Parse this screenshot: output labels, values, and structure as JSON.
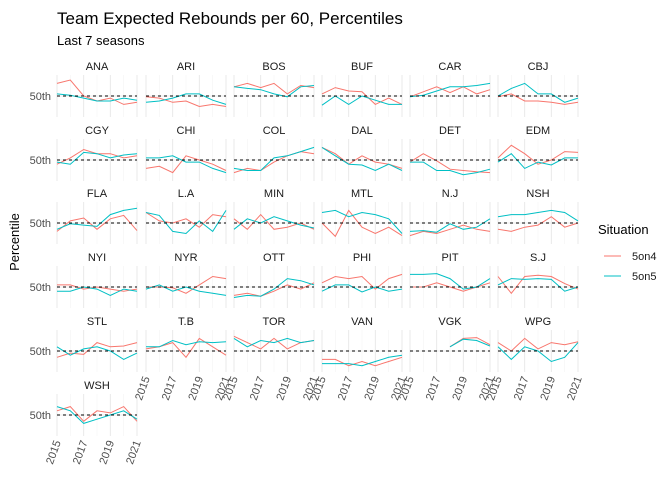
{
  "chart_data": {
    "type": "line",
    "title": "Team Expected Rebounds per 60, Percentiles",
    "subtitle": "Last 7 seasons",
    "ylabel": "Percentile",
    "xlabel": "",
    "y_tick_labels": [
      "50th"
    ],
    "ylim": [
      0,
      100
    ],
    "x": [
      2015,
      2016,
      2017,
      2018,
      2019,
      2020,
      2021
    ],
    "x_tick_labels": [
      "2015",
      "2017",
      "2019",
      "2021"
    ],
    "legend": {
      "title": "Situation",
      "position": "right",
      "entries": [
        {
          "name": "5on4",
          "color": "#F8766D"
        },
        {
          "name": "5on5",
          "color": "#00BFC4"
        }
      ]
    },
    "reference_line": {
      "value": 50,
      "style": "dashed",
      "color": "#000000"
    },
    "grid": true,
    "panels": [
      {
        "team": "ANA",
        "series": [
          {
            "name": "5on4",
            "values": [
              80,
              88,
              50,
              38,
              45,
              30,
              35
            ]
          },
          {
            "name": "5on5",
            "values": [
              55,
              52,
              45,
              38,
              38,
              45,
              40
            ]
          }
        ]
      },
      {
        "team": "ARI",
        "series": [
          {
            "name": "5on4",
            "values": [
              48,
              45,
              35,
              38,
              25,
              30,
              25
            ]
          },
          {
            "name": "5on5",
            "values": [
              35,
              38,
              45,
              55,
              55,
              40,
              30
            ]
          }
        ]
      },
      {
        "team": "BOS",
        "series": [
          {
            "name": "5on4",
            "values": [
              72,
              80,
              70,
              80,
              55,
              75,
              70
            ]
          },
          {
            "name": "5on5",
            "values": [
              72,
              68,
              65,
              55,
              48,
              72,
              75
            ]
          }
        ]
      },
      {
        "team": "BUF",
        "series": [
          {
            "name": "5on4",
            "values": [
              55,
              70,
              62,
              60,
              30,
              45,
              30
            ]
          },
          {
            "name": "5on5",
            "values": [
              28,
              50,
              30,
              50,
              40,
              30,
              30
            ]
          }
        ]
      },
      {
        "team": "CAR",
        "series": [
          {
            "name": "5on4",
            "values": [
              48,
              60,
              72,
              58,
              72,
              55,
              65
            ]
          },
          {
            "name": "5on5",
            "values": [
              48,
              52,
              62,
              72,
              72,
              75,
              80
            ]
          }
        ]
      },
      {
        "team": "CBJ",
        "series": [
          {
            "name": "5on4",
            "values": [
              48,
              55,
              38,
              38,
              35,
              30,
              35
            ]
          },
          {
            "name": "5on5",
            "values": [
              50,
              68,
              80,
              55,
              55,
              35,
              45
            ]
          }
        ]
      },
      {
        "team": "CGY",
        "series": [
          {
            "name": "5on4",
            "values": [
              40,
              55,
              75,
              65,
              65,
              55,
              60
            ]
          },
          {
            "name": "5on5",
            "values": [
              45,
              40,
              68,
              65,
              55,
              62,
              65
            ]
          }
        ]
      },
      {
        "team": "CHI",
        "series": [
          {
            "name": "5on4",
            "values": [
              30,
              35,
              20,
              60,
              50,
              40,
              25
            ]
          },
          {
            "name": "5on5",
            "values": [
              55,
              55,
              60,
              45,
              45,
              30,
              20
            ]
          }
        ]
      },
      {
        "team": "COL",
        "series": [
          {
            "name": "5on4",
            "values": [
              20,
              30,
              25,
              45,
              60,
              70,
              65
            ]
          },
          {
            "name": "5on5",
            "values": [
              30,
              25,
              25,
              55,
              60,
              70,
              80
            ]
          }
        ]
      },
      {
        "team": "DAL",
        "series": [
          {
            "name": "5on4",
            "values": [
              80,
              65,
              40,
              60,
              45,
              40,
              30
            ]
          },
          {
            "name": "5on5",
            "values": [
              80,
              60,
              40,
              38,
              25,
              40,
              25
            ]
          }
        ]
      },
      {
        "team": "DET",
        "series": [
          {
            "name": "5on4",
            "values": [
              45,
              65,
              48,
              28,
              25,
              22,
              20
            ]
          },
          {
            "name": "5on5",
            "values": [
              45,
              45,
              25,
              25,
              15,
              20,
              28
            ]
          }
        ]
      },
      {
        "team": "EDM",
        "series": [
          {
            "name": "5on4",
            "values": [
              55,
              85,
              65,
              40,
              50,
              70,
              68
            ]
          },
          {
            "name": "5on5",
            "values": [
              45,
              65,
              30,
              45,
              38,
              55,
              55
            ]
          }
        ]
      },
      {
        "team": "FLA",
        "series": [
          {
            "name": "5on4",
            "values": [
              30,
              55,
              62,
              35,
              60,
              68,
              32
            ]
          },
          {
            "name": "5on5",
            "values": [
              35,
              48,
              45,
              42,
              70,
              80,
              85
            ]
          }
        ]
      },
      {
        "team": "L.A",
        "series": [
          {
            "name": "5on4",
            "values": [
              75,
              55,
              50,
              60,
              40,
              70,
              65
            ]
          },
          {
            "name": "5on5",
            "values": [
              75,
              68,
              30,
              25,
              55,
              30,
              80
            ]
          }
        ]
      },
      {
        "team": "MIN",
        "series": [
          {
            "name": "5on4",
            "values": [
              60,
              35,
              70,
              35,
              40,
              50,
              35
            ]
          },
          {
            "name": "5on5",
            "values": [
              35,
              60,
              50,
              65,
              55,
              45,
              38
            ]
          }
        ]
      },
      {
        "team": "MTL",
        "series": [
          {
            "name": "5on4",
            "values": [
              50,
              18,
              80,
              40,
              25,
              40,
              20
            ]
          },
          {
            "name": "5on5",
            "values": [
              75,
              80,
              65,
              75,
              70,
              60,
              25
            ]
          }
        ]
      },
      {
        "team": "N.J",
        "series": [
          {
            "name": "5on4",
            "values": [
              20,
              30,
              25,
              35,
              45,
              35,
              30
            ]
          },
          {
            "name": "5on5",
            "values": [
              30,
              32,
              28,
              48,
              35,
              40,
              60
            ]
          }
        ]
      },
      {
        "team": "NSH",
        "series": [
          {
            "name": "5on4",
            "values": [
              35,
              30,
              40,
              45,
              65,
              40,
              50
            ]
          },
          {
            "name": "5on5",
            "values": [
              65,
              70,
              70,
              75,
              80,
              75,
              55
            ]
          }
        ]
      },
      {
        "team": "NYI",
        "series": [
          {
            "name": "5on4",
            "values": [
              55,
              55,
              45,
              50,
              45,
              40,
              45
            ]
          },
          {
            "name": "5on5",
            "values": [
              40,
              40,
              50,
              45,
              30,
              45,
              40
            ]
          }
        ]
      },
      {
        "team": "NYR",
        "series": [
          {
            "name": "5on4",
            "values": [
              50,
              50,
              48,
              35,
              55,
              75,
              70
            ]
          },
          {
            "name": "5on5",
            "values": [
              45,
              55,
              40,
              50,
              40,
              35,
              30
            ]
          }
        ]
      },
      {
        "team": "OTT",
        "series": [
          {
            "name": "5on4",
            "values": [
              30,
              35,
              28,
              40,
              55,
              45,
              60
            ]
          },
          {
            "name": "5on5",
            "values": [
              25,
              30,
              28,
              45,
              70,
              65,
              55
            ]
          }
        ]
      },
      {
        "team": "PHI",
        "series": [
          {
            "name": "5on4",
            "values": [
              60,
              75,
              70,
              75,
              45,
              70,
              80
            ]
          },
          {
            "name": "5on5",
            "values": [
              40,
              55,
              55,
              38,
              50,
              40,
              45
            ]
          }
        ]
      },
      {
        "team": "PIT",
        "series": [
          {
            "name": "5on4",
            "values": [
              50,
              50,
              60,
              50,
              40,
              50,
              60
            ]
          },
          {
            "name": "5on5",
            "values": [
              80,
              80,
              82,
              70,
              45,
              50,
              70
            ]
          }
        ]
      },
      {
        "team": "S.J",
        "series": [
          {
            "name": "5on4",
            "values": [
              75,
              35,
              75,
              78,
              75,
              58,
              45
            ]
          },
          {
            "name": "5on5",
            "values": [
              55,
              70,
              68,
              70,
              68,
              40,
              50
            ]
          }
        ]
      },
      {
        "team": "STL",
        "series": [
          {
            "name": "5on4",
            "values": [
              35,
              45,
              42,
              70,
              60,
              62,
              70
            ]
          },
          {
            "name": "5on5",
            "values": [
              60,
              40,
              55,
              60,
              50,
              30,
              45
            ]
          }
        ]
      },
      {
        "team": "T.B",
        "series": [
          {
            "name": "5on4",
            "values": [
              55,
              60,
              70,
              35,
              80,
              60,
              40
            ]
          },
          {
            "name": "5on5",
            "values": [
              60,
              60,
              75,
              65,
              72,
              70,
              72
            ]
          }
        ]
      },
      {
        "team": "TOR",
        "series": [
          {
            "name": "5on4",
            "values": [
              85,
              70,
              55,
              80,
              55,
              70,
              75
            ]
          },
          {
            "name": "5on5",
            "values": [
              80,
              60,
              75,
              70,
              80,
              70,
              75
            ]
          }
        ]
      },
      {
        "team": "VAN",
        "series": [
          {
            "name": "5on4",
            "values": [
              30,
              30,
              15,
              25,
              15,
              25,
              35
            ]
          },
          {
            "name": "5on5",
            "values": [
              20,
              20,
              20,
              15,
              25,
              35,
              40
            ]
          }
        ]
      },
      {
        "team": "VGK",
        "series": [
          {
            "name": "5on4",
            "values": [
              null,
              null,
              null,
              60,
              80,
              82,
              65
            ]
          },
          {
            "name": "5on5",
            "values": [
              null,
              null,
              null,
              60,
              78,
              75,
              62
            ]
          }
        ]
      },
      {
        "team": "WPG",
        "series": [
          {
            "name": "5on4",
            "values": [
              70,
              50,
              80,
              55,
              70,
              65,
              72
            ]
          },
          {
            "name": "5on5",
            "values": [
              60,
              30,
              60,
              50,
              25,
              35,
              70
            ]
          }
        ]
      },
      {
        "team": "WSH",
        "series": [
          {
            "name": "5on4",
            "values": [
              60,
              70,
              35,
              60,
              55,
              70,
              35
            ]
          },
          {
            "name": "5on5",
            "values": [
              70,
              60,
              30,
              40,
              50,
              60,
              40
            ]
          }
        ]
      }
    ]
  }
}
